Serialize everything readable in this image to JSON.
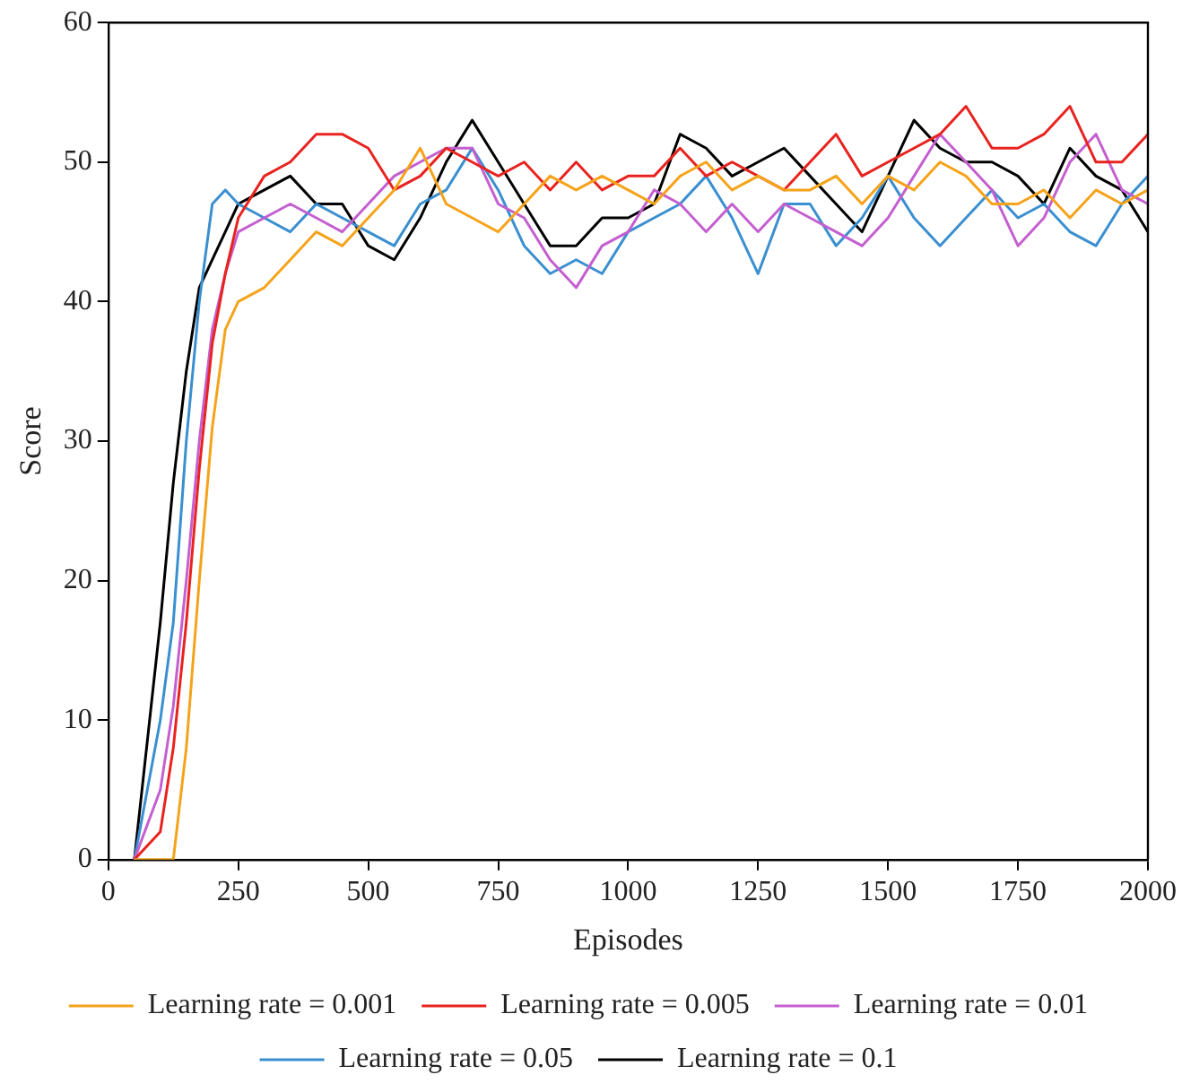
{
  "chart_data": {
    "type": "line",
    "xlabel": "Episodes",
    "ylabel": "Score",
    "x": [
      50,
      100,
      125,
      150,
      175,
      200,
      225,
      250,
      300,
      350,
      400,
      450,
      500,
      550,
      600,
      650,
      700,
      750,
      800,
      850,
      900,
      950,
      1000,
      1050,
      1100,
      1150,
      1200,
      1250,
      1300,
      1350,
      1400,
      1450,
      1500,
      1550,
      1600,
      1650,
      1700,
      1750,
      1800,
      1850,
      1900,
      1950,
      2000
    ],
    "xlim": [
      0,
      2000
    ],
    "xticks": [
      0,
      250,
      500,
      750,
      1000,
      1250,
      1500,
      1750,
      2000
    ],
    "ylim": [
      0,
      60
    ],
    "yticks": [
      0,
      10,
      20,
      30,
      40,
      50,
      60
    ],
    "grid": false,
    "legend": "bottom",
    "marker": "none",
    "line_style": "solid",
    "series": [
      {
        "name": "Learning rate = 0.001",
        "color": "#f5a31a",
        "values": [
          0,
          0,
          0,
          8,
          20,
          31,
          38,
          40,
          41,
          43,
          45,
          44,
          46,
          48,
          51,
          47,
          46,
          45,
          47,
          49,
          48,
          49,
          48,
          47,
          49,
          50,
          48,
          49,
          48,
          48,
          49,
          47,
          49,
          48,
          50,
          49,
          47,
          47,
          48,
          46,
          48,
          47,
          48
        ]
      },
      {
        "name": "Learning rate = 0.005",
        "color": "#e8231f",
        "values": [
          0,
          2,
          8,
          17,
          28,
          37,
          42,
          46,
          49,
          50,
          52,
          52,
          51,
          48,
          49,
          51,
          50,
          49,
          50,
          48,
          50,
          48,
          49,
          49,
          51,
          49,
          50,
          49,
          48,
          50,
          52,
          49,
          50,
          51,
          52,
          54,
          51,
          51,
          52,
          54,
          50,
          50,
          52
        ]
      },
      {
        "name": "Learning rate = 0.01",
        "color": "#c45fd0",
        "values": [
          0,
          5,
          11,
          20,
          30,
          38,
          42,
          45,
          46,
          47,
          46,
          45,
          47,
          49,
          50,
          51,
          51,
          47,
          46,
          43,
          41,
          44,
          45,
          48,
          47,
          45,
          47,
          45,
          47,
          46,
          45,
          44,
          46,
          49,
          52,
          50,
          48,
          44,
          46,
          50,
          52,
          48,
          47
        ]
      },
      {
        "name": "Learning rate = 0.05",
        "color": "#3a8fd0",
        "values": [
          0,
          10,
          17,
          30,
          40,
          47,
          48,
          47,
          46,
          45,
          47,
          46,
          45,
          44,
          47,
          48,
          51,
          48,
          44,
          42,
          43,
          42,
          45,
          46,
          47,
          49,
          46,
          42,
          47,
          47,
          44,
          46,
          49,
          46,
          44,
          46,
          48,
          46,
          47,
          45,
          44,
          47,
          49
        ]
      },
      {
        "name": "Learning rate = 0.1",
        "color": "#000000",
        "values": [
          0,
          17,
          27,
          35,
          41,
          43,
          45,
          47,
          48,
          49,
          47,
          47,
          44,
          43,
          46,
          50,
          53,
          50,
          47,
          44,
          44,
          46,
          46,
          47,
          52,
          51,
          49,
          50,
          51,
          49,
          47,
          45,
          49,
          53,
          51,
          50,
          50,
          49,
          47,
          51,
          49,
          48,
          45
        ]
      }
    ]
  }
}
